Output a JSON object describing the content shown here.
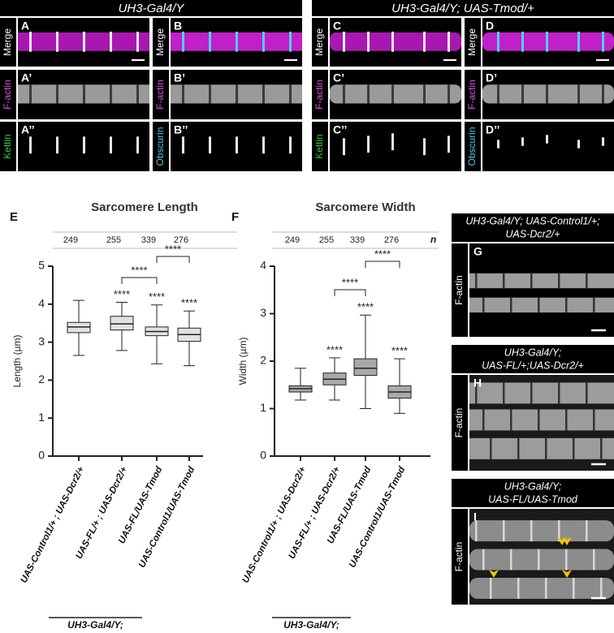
{
  "top_titles": [
    "UH3-Gal4/Y",
    "UH3-Gal4/Y; UAS-Tmod/+"
  ],
  "top_panels": [
    {
      "letters": [
        "A",
        "A’",
        "A’’"
      ],
      "channels": [
        {
          "text": "Merge",
          "color": "#ffffff"
        },
        {
          "text": "F-actin",
          "color": "#e04ae0"
        },
        {
          "text": "Kettin",
          "color": "#35c435"
        }
      ]
    },
    {
      "letters": [
        "B",
        "B’",
        "B’’"
      ],
      "channels": [
        {
          "text": "Merge",
          "color": "#ffffff"
        },
        {
          "text": "F-actin",
          "color": "#e04ae0"
        },
        {
          "text": "Obscurin",
          "color": "#4cc6e0"
        }
      ]
    },
    {
      "letters": [
        "C",
        "C’",
        "C’’"
      ],
      "channels": [
        {
          "text": "Merge",
          "color": "#ffffff"
        },
        {
          "text": "F-actin",
          "color": "#e04ae0"
        },
        {
          "text": "Kettin",
          "color": "#35c435"
        }
      ]
    },
    {
      "letters": [
        "D",
        "D’",
        "D’’"
      ],
      "channels": [
        {
          "text": "Merge",
          "color": "#ffffff"
        },
        {
          "text": "F-actin",
          "color": "#e04ae0"
        },
        {
          "text": "Obscurin",
          "color": "#4cc6e0"
        }
      ]
    }
  ],
  "side_panels": [
    {
      "title_lines": [
        "UH3-Gal4/Y; UAS-Control1/+;",
        "UAS-Dcr2/+"
      ],
      "letter": "G",
      "channel": "F-actin"
    },
    {
      "title_lines": [
        "UH3-Gal4/Y;",
        "UAS-FL/+;UAS-Dcr2/+"
      ],
      "letter": "H",
      "channel": "F-actin"
    },
    {
      "title_lines": [
        "UH3-Gal4/Y;",
        "UAS-FL/UAS-Tmod"
      ],
      "letter": "I",
      "channel": "F-actin"
    }
  ],
  "chart_data": [
    {
      "type": "box",
      "letter": "E",
      "title": "Sarcomere Length",
      "ylabel": "Length (µm)",
      "n_values": [
        249,
        255,
        339,
        276
      ],
      "categories": [
        "UAS-Control1/+ ; UAS-Dcr2/+",
        "UAS-FL/+ ; UAS-Dcr2/+",
        "UAS-FL/UAS-Tmod",
        "UAS-Control1/UAS-Tmod"
      ],
      "boxes": [
        {
          "whislo": 2.65,
          "q1": 3.25,
          "med": 3.4,
          "q3": 3.52,
          "whishi": 4.1
        },
        {
          "whislo": 2.78,
          "q1": 3.32,
          "med": 3.48,
          "q3": 3.68,
          "whishi": 4.05
        },
        {
          "whislo": 2.43,
          "q1": 3.17,
          "med": 3.28,
          "q3": 3.4,
          "whishi": 3.98
        },
        {
          "whislo": 2.38,
          "q1": 3.02,
          "med": 3.2,
          "q3": 3.37,
          "whishi": 3.82
        }
      ],
      "color": "#e2e2e2",
      "significance": [
        {
          "index": 1,
          "label": "****"
        },
        {
          "index": 2,
          "label": "****"
        },
        {
          "index": 3,
          "label": "****"
        }
      ],
      "comparisons": [
        {
          "from": 1,
          "to": 2,
          "label": "****"
        },
        {
          "from": 2,
          "to": 3,
          "label": "****"
        }
      ],
      "ylim": [
        0,
        5
      ],
      "yticks": [
        0,
        1,
        2,
        3,
        4,
        5
      ],
      "footer": "UH3-Gal4/Y;"
    },
    {
      "type": "box",
      "letter": "F",
      "title": "Sarcomere Width",
      "ylabel": "Width (µm)",
      "n_values": [
        249,
        255,
        339,
        276
      ],
      "n_label": "n",
      "categories": [
        "UAS-Control1/+ ; UAS-Dcr2/+",
        "UAS-FL/+ ; UAS-Dcr2/+",
        "UAS-FL/UAS-Tmod",
        "UAS-Control1/UAS-Tmod"
      ],
      "boxes": [
        {
          "whislo": 1.18,
          "q1": 1.35,
          "med": 1.42,
          "q3": 1.48,
          "whishi": 1.85
        },
        {
          "whislo": 1.18,
          "q1": 1.5,
          "med": 1.62,
          "q3": 1.75,
          "whishi": 2.07
        },
        {
          "whislo": 1.0,
          "q1": 1.7,
          "med": 1.85,
          "q3": 2.05,
          "whishi": 2.97
        },
        {
          "whislo": 0.9,
          "q1": 1.22,
          "med": 1.35,
          "q3": 1.48,
          "whishi": 2.05
        }
      ],
      "color": "#a9a9a9",
      "significance": [
        {
          "index": 1,
          "label": "****"
        },
        {
          "index": 2,
          "label": "****"
        },
        {
          "index": 3,
          "label": "****"
        }
      ],
      "comparisons": [
        {
          "from": 1,
          "to": 2,
          "label": "****"
        },
        {
          "from": 2,
          "to": 3,
          "label": "****"
        }
      ],
      "ylim": [
        0,
        4
      ],
      "yticks": [
        0,
        1,
        2,
        3,
        4
      ],
      "footer": "UH3-Gal4/Y;"
    }
  ]
}
